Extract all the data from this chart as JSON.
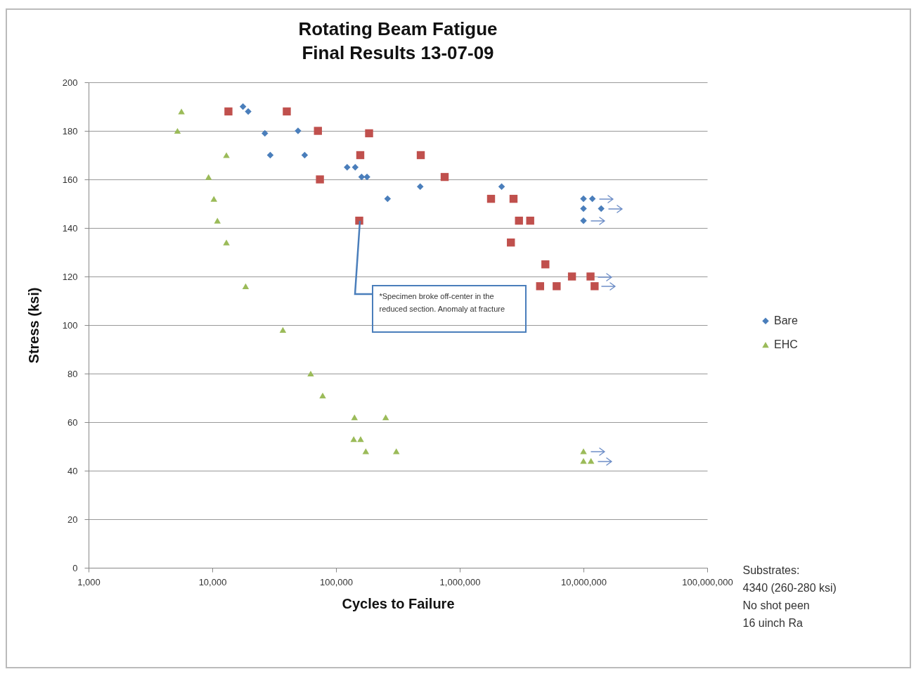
{
  "chart_data": {
    "type": "scatter",
    "title": "Rotating Beam Fatigue",
    "subtitle": "Final Results 13-07-09",
    "xlabel": "Cycles to Failure",
    "ylabel": "Stress (ksi)",
    "log": "x",
    "xlim": [
      1000,
      100000000
    ],
    "xticks": [
      {
        "value": 1000,
        "label": "1,000"
      },
      {
        "value": 10000,
        "label": "10,000"
      },
      {
        "value": 100000,
        "label": "100,000"
      },
      {
        "value": 1000000,
        "label": "1,000,000"
      },
      {
        "value": 10000000,
        "label": "10,000,000"
      },
      {
        "value": 100000000,
        "label": "100,000,000"
      }
    ],
    "ylim": [
      0,
      200
    ],
    "yticks": [
      0,
      20,
      40,
      60,
      80,
      100,
      120,
      140,
      160,
      180,
      200
    ],
    "grid": "y",
    "legend": "right",
    "series": [
      {
        "name": "Bare",
        "color": "#4a7ebb",
        "marker": "diamond",
        "x": [
          17700,
          19500,
          26600,
          29400,
          49300,
          55800,
          123000,
          143000,
          161000,
          178000,
          261000,
          479000,
          2180000,
          10000000,
          11800000,
          10000000,
          13900000,
          10000000
        ],
        "values": [
          190,
          188,
          179,
          170,
          180,
          170,
          165,
          165,
          161,
          161,
          152,
          157,
          157,
          152,
          152,
          148,
          148,
          143
        ]
      },
      {
        "color": "#c0504d",
        "marker": "square",
        "x": [
          13500,
          40000,
          71400,
          185000,
          157000,
          74100,
          154000,
          484000,
          755000,
          1790000,
          2720000,
          3010000,
          3710000,
          2590000,
          4920000,
          4460000,
          6070000,
          8070000,
          11400000,
          12300000
        ],
        "values": [
          188,
          188,
          180,
          179,
          170,
          160,
          143,
          170,
          161,
          152,
          152,
          143,
          143,
          134,
          125,
          116,
          116,
          120,
          120,
          116
        ]
      },
      {
        "name": "EHC",
        "color": "#9bbb59",
        "marker": "triangle",
        "x": [
          5630,
          5230,
          13000,
          9330,
          10300,
          11000,
          13000,
          18600,
          37200,
          62400,
          78000,
          141000,
          252000,
          139000,
          158000,
          174000,
          307000,
          10000000,
          10000000,
          11500000
        ],
        "values": [
          188,
          180,
          170,
          161,
          152,
          143,
          134,
          116,
          98,
          80,
          71,
          62,
          62,
          53,
          53,
          48,
          48,
          48,
          44,
          44
        ]
      }
    ],
    "annotations": [
      {
        "text": "*Specimen broke off-center in the reduced section. Anomaly at fracture",
        "x": 154000,
        "y": 143
      },
      "Substrates:\n4340 (260-280 ksi)\nNo shot peen\n16 uinch Ra"
    ]
  }
}
